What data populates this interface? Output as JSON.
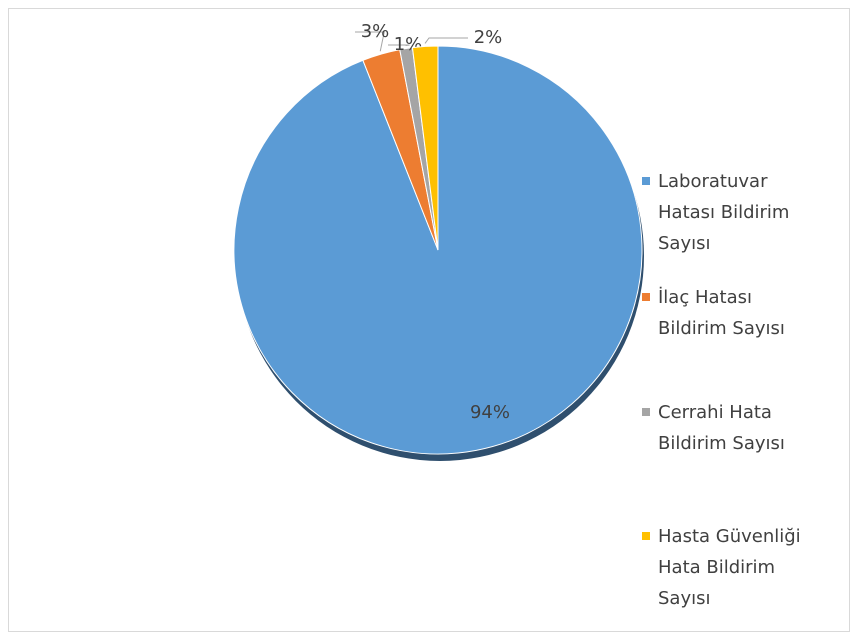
{
  "chart_data": {
    "type": "pie",
    "categories": [
      "Laboratuvar Hatası Bildirim Sayısı",
      "İlaç Hatası Bildirim Sayısı",
      "Cerrahi Hata Bildirim Sayısı",
      "Hasta Güvenliği Hata Bildirim Sayısı"
    ],
    "values": [
      94,
      3,
      1,
      2
    ],
    "value_labels": [
      "94%",
      "3%",
      "1%",
      "2%"
    ],
    "colors": [
      "#5b9bd5",
      "#ed7d31",
      "#a5a5a5",
      "#ffc000"
    ],
    "legend": "right"
  }
}
